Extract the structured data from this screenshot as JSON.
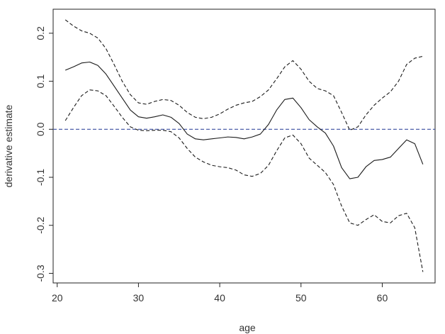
{
  "chart_data": {
    "type": "line",
    "title": "",
    "xlabel": "age",
    "ylabel": "derivative estimate",
    "xlim": [
      19.5,
      66.5
    ],
    "ylim": [
      -0.32,
      0.25
    ],
    "xticks": [
      20,
      30,
      40,
      50,
      60
    ],
    "yticks": [
      -0.3,
      -0.2,
      -0.1,
      0.0,
      0.1,
      0.2
    ],
    "xtick_labels": [
      "20",
      "30",
      "40",
      "50",
      "60"
    ],
    "ytick_labels": [
      "-0.3",
      "-0.2",
      "-0.1",
      "0.0",
      "0.1",
      "0.2"
    ],
    "reference_line": {
      "y": 0.0,
      "color": "#3a4fa0",
      "style": "dashed"
    },
    "grid": false,
    "series": [
      {
        "role": "estimate",
        "style": "solid",
        "color": "#1a1a1a",
        "x": [
          21,
          22,
          23,
          24,
          25,
          26,
          27,
          28,
          29,
          30,
          31,
          32,
          33,
          34,
          35,
          36,
          37,
          38,
          39,
          40,
          41,
          42,
          43,
          44,
          45,
          46,
          47,
          48,
          49,
          50,
          51,
          52,
          53,
          54,
          55,
          56,
          57,
          58,
          59,
          60,
          61,
          62,
          63,
          64,
          65
        ],
        "y": [
          0.123,
          0.13,
          0.138,
          0.14,
          0.133,
          0.115,
          0.09,
          0.065,
          0.04,
          0.026,
          0.023,
          0.026,
          0.03,
          0.025,
          0.012,
          -0.01,
          -0.02,
          -0.022,
          -0.02,
          -0.018,
          -0.016,
          -0.017,
          -0.02,
          -0.016,
          -0.01,
          0.01,
          0.04,
          0.062,
          0.065,
          0.045,
          0.02,
          0.005,
          -0.008,
          -0.035,
          -0.08,
          -0.103,
          -0.1,
          -0.078,
          -0.065,
          -0.063,
          -0.058,
          -0.04,
          -0.022,
          -0.03,
          -0.073
        ]
      },
      {
        "role": "upper-band",
        "style": "dashed",
        "color": "#1a1a1a",
        "x": [
          21,
          22,
          23,
          24,
          25,
          26,
          27,
          28,
          29,
          30,
          31,
          32,
          33,
          34,
          35,
          36,
          37,
          38,
          39,
          40,
          41,
          42,
          43,
          44,
          45,
          46,
          47,
          48,
          49,
          50,
          51,
          52,
          53,
          54,
          55,
          56,
          57,
          58,
          59,
          60,
          61,
          62,
          63,
          64,
          65
        ],
        "y": [
          0.228,
          0.215,
          0.205,
          0.2,
          0.19,
          0.168,
          0.135,
          0.1,
          0.072,
          0.055,
          0.052,
          0.058,
          0.062,
          0.06,
          0.05,
          0.035,
          0.025,
          0.022,
          0.025,
          0.032,
          0.042,
          0.05,
          0.055,
          0.058,
          0.068,
          0.082,
          0.105,
          0.13,
          0.143,
          0.125,
          0.1,
          0.085,
          0.08,
          0.07,
          0.035,
          -0.002,
          0.005,
          0.03,
          0.05,
          0.065,
          0.078,
          0.1,
          0.135,
          0.148,
          0.152
        ]
      },
      {
        "role": "lower-band",
        "style": "dashed",
        "color": "#1a1a1a",
        "x": [
          21,
          22,
          23,
          24,
          25,
          26,
          27,
          28,
          29,
          30,
          31,
          32,
          33,
          34,
          35,
          36,
          37,
          38,
          39,
          40,
          41,
          42,
          43,
          44,
          45,
          46,
          47,
          48,
          49,
          50,
          51,
          52,
          53,
          54,
          55,
          56,
          57,
          58,
          59,
          60,
          61,
          62,
          63,
          64,
          65
        ],
        "y": [
          0.018,
          0.045,
          0.07,
          0.082,
          0.08,
          0.07,
          0.048,
          0.025,
          0.005,
          -0.002,
          -0.003,
          -0.002,
          -0.002,
          -0.005,
          -0.018,
          -0.04,
          -0.058,
          -0.068,
          -0.075,
          -0.078,
          -0.08,
          -0.085,
          -0.095,
          -0.098,
          -0.092,
          -0.075,
          -0.045,
          -0.018,
          -0.012,
          -0.03,
          -0.06,
          -0.075,
          -0.09,
          -0.115,
          -0.16,
          -0.195,
          -0.2,
          -0.188,
          -0.178,
          -0.192,
          -0.195,
          -0.18,
          -0.175,
          -0.205,
          -0.297
        ]
      }
    ]
  }
}
